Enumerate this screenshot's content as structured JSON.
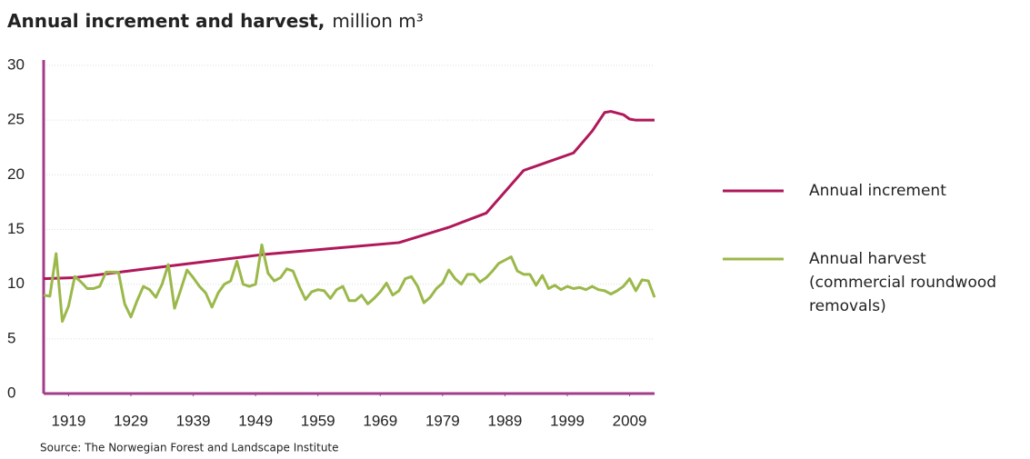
{
  "chart_data": {
    "type": "line",
    "title": "Annual increment and harvest,",
    "unit": "million m³",
    "source": "Source: The Norwegian Forest and Landscape Institute",
    "xlim": [
      1915,
      2013
    ],
    "xticks": [
      1919,
      1929,
      1939,
      1949,
      1959,
      1969,
      1979,
      1989,
      1999,
      2009
    ],
    "ylim": [
      0,
      30
    ],
    "yticks": [
      0,
      5,
      10,
      15,
      20,
      25,
      30
    ],
    "grid": true,
    "series": [
      {
        "name": "Annual increment",
        "color": "#b0185a",
        "x": [
          1915,
          1920,
          1930,
          1940,
          1950,
          1960,
          1972,
          1980,
          1986,
          1992,
          1995,
          2000,
          2003,
          2005,
          2006,
          2008,
          2009,
          2010,
          2013
        ],
        "values": [
          10.5,
          10.6,
          11.3,
          12.0,
          12.7,
          13.2,
          13.8,
          15.2,
          16.5,
          20.4,
          21.0,
          22.0,
          24.0,
          25.7,
          25.8,
          25.5,
          25.1,
          25.0,
          25.0
        ]
      },
      {
        "name": "Annual harvest (commercial roundwood removals)",
        "color": "#9bb84a",
        "x": [
          1915,
          1916,
          1917,
          1918,
          1919,
          1920,
          1921,
          1922,
          1923,
          1924,
          1925,
          1926,
          1927,
          1928,
          1929,
          1930,
          1931,
          1932,
          1933,
          1934,
          1935,
          1936,
          1937,
          1938,
          1939,
          1940,
          1941,
          1942,
          1943,
          1944,
          1945,
          1946,
          1947,
          1948,
          1949,
          1950,
          1951,
          1952,
          1953,
          1954,
          1955,
          1956,
          1957,
          1958,
          1959,
          1960,
          1961,
          1962,
          1963,
          1964,
          1965,
          1966,
          1967,
          1968,
          1969,
          1970,
          1971,
          1972,
          1973,
          1974,
          1975,
          1976,
          1977,
          1978,
          1979,
          1980,
          1981,
          1982,
          1983,
          1984,
          1985,
          1986,
          1987,
          1988,
          1989,
          1990,
          1991,
          1992,
          1993,
          1994,
          1995,
          1996,
          1997,
          1998,
          1999,
          2000,
          2001,
          2002,
          2003,
          2004,
          2005,
          2006,
          2007,
          2008,
          2009,
          2010,
          2011,
          2012,
          2013
        ],
        "values": [
          9,
          8.9,
          12.8,
          6.6,
          8,
          10.7,
          10.2,
          9.6,
          9.6,
          9.8,
          11.1,
          11.1,
          11.1,
          8.2,
          7,
          8.5,
          9.8,
          9.5,
          8.8,
          10,
          11.8,
          7.8,
          9.5,
          11.3,
          10.6,
          9.8,
          9.2,
          7.9,
          9.2,
          10,
          10.3,
          12.1,
          10,
          9.8,
          10,
          13.6,
          11,
          10.3,
          10.6,
          11.4,
          11.2,
          9.8,
          8.6,
          9.3,
          9.5,
          9.4,
          8.7,
          9.5,
          9.8,
          8.5,
          8.5,
          9,
          8.2,
          8.7,
          9.3,
          10.1,
          9,
          9.4,
          10.5,
          10.7,
          9.8,
          8.3,
          8.8,
          9.6,
          10.1,
          11.3,
          10.5,
          10,
          10.9,
          10.9,
          10.2,
          10.6,
          11.2,
          11.9,
          12.2,
          12.5,
          11.2,
          10.9,
          10.9,
          9.9,
          10.8,
          9.6,
          9.9,
          9.5,
          9.8,
          9.6,
          9.7,
          9.5,
          9.8,
          9.5,
          9.4,
          9.1,
          9.4,
          9.8,
          10.5,
          9.4,
          10.4,
          10.3,
          8.8
        ]
      }
    ]
  }
}
